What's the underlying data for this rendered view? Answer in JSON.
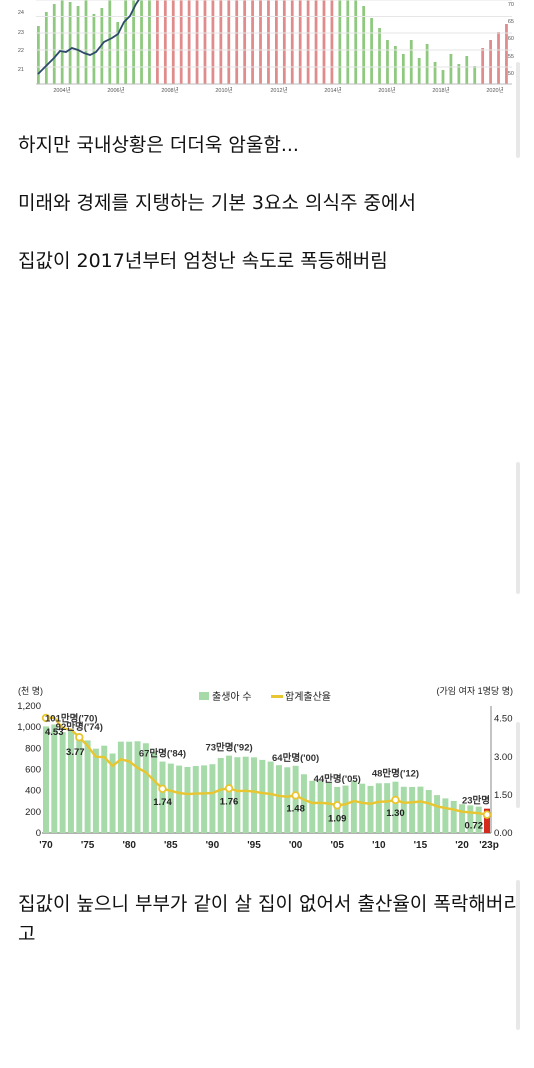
{
  "post": {
    "p1": "하지만 국내상황은 더더욱 암울함...",
    "p2": "미래와 경제를 지탱하는 기본 3요소 의식주 중에서",
    "p3": "집값이 2017년부터 엄청난 속도로 폭등해버림",
    "p4": "집값이 높으니 부부가 같이 살 집이 없어서 출산율이 폭락해버리고"
  },
  "chart_data": [
    {
      "type": "bar",
      "note": "cropped chart (top portion cut off)",
      "x_tick_labels": [
        "2004년",
        "2006년",
        "2008년",
        "2010년",
        "2012년",
        "2014년",
        "2016년",
        "2018년",
        "2020년"
      ],
      "y_left_tick_labels": [
        "24",
        "23",
        "22",
        "21"
      ],
      "y_right_tick_labels": [
        "70",
        "65",
        "60",
        "55",
        "50"
      ],
      "colors": {
        "green": "#8fc97f",
        "red": "#e08c8c",
        "line": "#2d4a6b"
      }
    },
    {
      "type": "bar",
      "legend": [
        "출생아 수",
        "합계출산율"
      ],
      "y_left_unit": "(천 명)",
      "y_right_unit": "(가임 여자 1명당 명)",
      "y_left_ticks": [
        "0",
        "200",
        "400",
        "600",
        "800",
        "1,000",
        "1,200"
      ],
      "y_right_ticks": [
        "0.00",
        "1.50",
        "3.00",
        "4.50"
      ],
      "x_tick_labels": [
        "'70",
        "'75",
        "'80",
        "'85",
        "'90",
        "'95",
        "'00",
        "'05",
        "'10",
        "'15",
        "'20",
        "'23p"
      ],
      "ylim_left": [
        0,
        1200
      ],
      "ylim_right": [
        0,
        5
      ],
      "years": [
        1970,
        1971,
        1972,
        1973,
        1974,
        1975,
        1976,
        1977,
        1978,
        1979,
        1980,
        1981,
        1982,
        1983,
        1984,
        1985,
        1986,
        1987,
        1988,
        1989,
        1990,
        1991,
        1992,
        1993,
        1994,
        1995,
        1996,
        1997,
        1998,
        1999,
        2000,
        2001,
        2002,
        2003,
        2004,
        2005,
        2006,
        2007,
        2008,
        2009,
        2010,
        2011,
        2012,
        2013,
        2014,
        2015,
        2016,
        2017,
        2018,
        2019,
        2020,
        2021,
        2022,
        2023
      ],
      "births": [
        1007,
        1025,
        953,
        965,
        924,
        875,
        797,
        825,
        751,
        863,
        863,
        867,
        848,
        770,
        675,
        656,
        637,
        624,
        633,
        639,
        650,
        709,
        731,
        716,
        721,
        715,
        691,
        675,
        641,
        621,
        635,
        555,
        493,
        491,
        473,
        435,
        448,
        494,
        466,
        445,
        470,
        471,
        485,
        437,
        435,
        438,
        406,
        358,
        327,
        303,
        272,
        261,
        249,
        230
      ],
      "tfr": [
        4.53,
        4.54,
        4.12,
        4.07,
        3.77,
        3.43,
        3.0,
        2.99,
        2.64,
        2.9,
        2.82,
        2.57,
        2.39,
        2.06,
        1.74,
        1.66,
        1.58,
        1.53,
        1.55,
        1.56,
        1.57,
        1.71,
        1.76,
        1.65,
        1.66,
        1.63,
        1.57,
        1.54,
        1.46,
        1.43,
        1.48,
        1.31,
        1.18,
        1.19,
        1.16,
        1.09,
        1.13,
        1.26,
        1.19,
        1.15,
        1.23,
        1.24,
        1.3,
        1.19,
        1.21,
        1.24,
        1.17,
        1.05,
        0.98,
        0.92,
        0.84,
        0.81,
        0.78,
        0.72
      ],
      "birth_annotations": [
        {
          "text": "101만명('70)",
          "year": 1970
        },
        {
          "text": "92만명('74)",
          "year": 1974
        },
        {
          "text": "67만명('84)",
          "year": 1984
        },
        {
          "text": "73만명('92)",
          "year": 1992
        },
        {
          "text": "64만명('00)",
          "year": 2000
        },
        {
          "text": "44만명('05)",
          "year": 2005
        },
        {
          "text": "48만명('12)",
          "year": 2012
        },
        {
          "text": "23만명",
          "year": 2023
        }
      ],
      "tfr_annotations": [
        {
          "text": "4.53",
          "year": 1970
        },
        {
          "text": "3.77",
          "year": 1974
        },
        {
          "text": "1.74",
          "year": 1984
        },
        {
          "text": "1.76",
          "year": 1992
        },
        {
          "text": "1.48",
          "year": 2000
        },
        {
          "text": "1.09",
          "year": 2005
        },
        {
          "text": "1.30",
          "year": 2012
        },
        {
          "text": "0.72",
          "year": 2023
        }
      ],
      "colors": {
        "bars": "#a6dba9",
        "highlight": "#d42a1e",
        "line": "#e8c531"
      }
    }
  ]
}
